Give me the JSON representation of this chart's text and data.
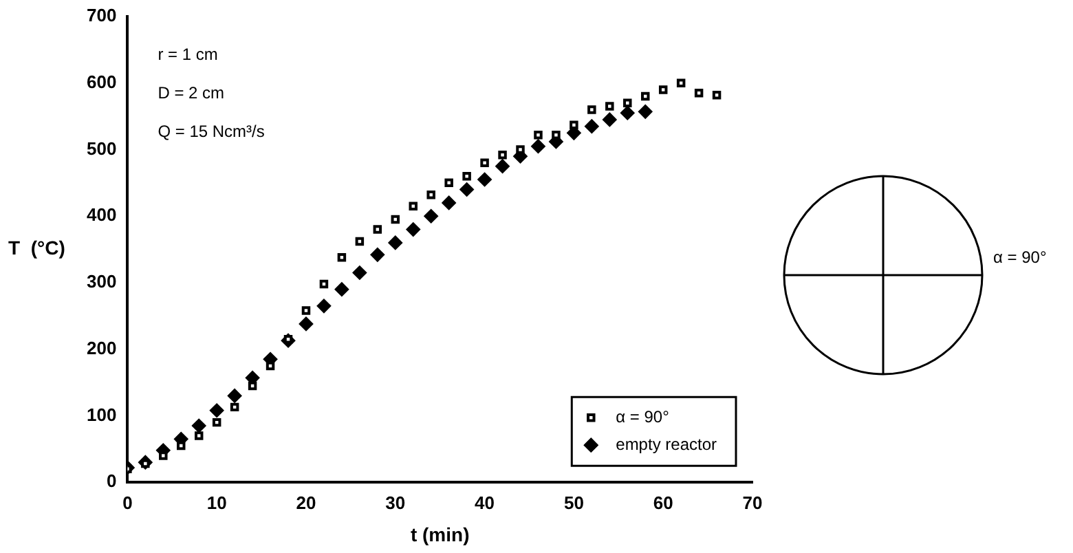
{
  "chart_data": {
    "type": "scatter",
    "xlabel": "t (min)",
    "ylabel": "T  (°C)",
    "x": [
      0,
      2,
      4,
      6,
      8,
      10,
      12,
      14,
      16,
      18,
      20,
      22,
      24,
      26,
      28,
      30,
      32,
      34,
      36,
      38,
      40,
      42,
      44,
      46,
      48,
      50,
      52,
      54,
      56,
      58,
      60,
      62,
      64,
      66
    ],
    "series": [
      {
        "name": "α = 90°",
        "color": "#000000",
        "marker": "square",
        "values": [
          20,
          28,
          40,
          55,
          70,
          90,
          113,
          145,
          175,
          215,
          258,
          298,
          338,
          362,
          380,
          395,
          415,
          432,
          450,
          460,
          480,
          492,
          500,
          522,
          522,
          537,
          560,
          565,
          570,
          580,
          590,
          600,
          585,
          582
        ]
      },
      {
        "name": "empty reactor",
        "color": "#000000",
        "marker": "diamond",
        "x": [
          0,
          2,
          4,
          6,
          8,
          10,
          12,
          14,
          16,
          18,
          20,
          22,
          24,
          26,
          28,
          30,
          32,
          34,
          36,
          38,
          40,
          42,
          44,
          46,
          48,
          50,
          52,
          54,
          56,
          58
        ],
        "values": [
          22,
          30,
          48,
          65,
          85,
          108,
          130,
          157,
          185,
          213,
          238,
          265,
          290,
          315,
          342,
          360,
          380,
          400,
          420,
          440,
          455,
          475,
          490,
          505,
          512,
          525,
          535,
          545,
          555,
          557
        ]
      }
    ],
    "xlim": [
      0,
      70
    ],
    "xticks": [
      0,
      10,
      20,
      30,
      40,
      50,
      60,
      70
    ],
    "ylim": [
      0,
      700
    ],
    "yticks": [
      0,
      100,
      200,
      300,
      400,
      500,
      600,
      700
    ],
    "grid": false,
    "legend": "bottom right",
    "annotations": [
      "r = 1 cm",
      "D = 2 cm",
      "Q = 15 Ncm³/s",
      "α = 90°"
    ]
  }
}
